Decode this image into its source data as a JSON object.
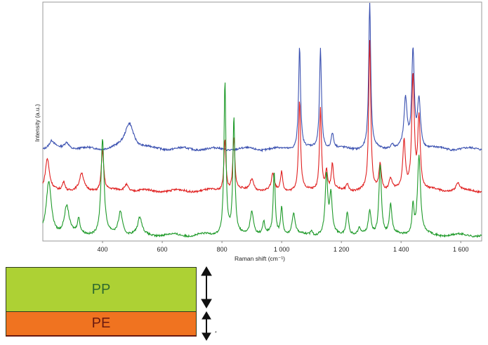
{
  "chart_data": {
    "type": "line",
    "xlabel": "Raman shift (cm⁻¹)",
    "ylabel": "Intensity (a.u.)",
    "xlim": [
      200,
      1670
    ],
    "ylim": [
      0,
      100
    ],
    "xticks": [
      400,
      600,
      800,
      1000,
      1200,
      1400,
      1600
    ],
    "xtick_labels": [
      "400",
      "600",
      "800",
      "1 000",
      "1 200",
      "1 400",
      "1 600"
    ],
    "grid": false,
    "series": [
      {
        "color": "#3a50b0",
        "baseline": 38.5,
        "peaks": [
          [
            230,
            3,
            10
          ],
          [
            280,
            3,
            10
          ],
          [
            490,
            11,
            18
          ],
          [
            1060,
            43,
            4
          ],
          [
            1130,
            42,
            4
          ],
          [
            1170,
            6.5,
            5
          ],
          [
            1295,
            61,
            4
          ],
          [
            1370,
            2,
            6
          ],
          [
            1415,
            20,
            6
          ],
          [
            1440,
            40,
            5
          ],
          [
            1460,
            20,
            6
          ]
        ]
      },
      {
        "color": "#e02020",
        "baseline": 21,
        "peaks": [
          [
            215,
            13,
            8
          ],
          [
            270,
            4,
            6
          ],
          [
            330,
            7,
            8
          ],
          [
            400,
            17,
            5
          ],
          [
            480,
            3,
            8
          ],
          [
            810,
            22,
            4
          ],
          [
            840,
            22,
            4
          ],
          [
            900,
            5,
            8
          ],
          [
            970,
            7,
            5
          ],
          [
            1000,
            8,
            4
          ],
          [
            1060,
            37,
            4
          ],
          [
            1130,
            35,
            4
          ],
          [
            1150,
            8,
            4
          ],
          [
            1170,
            11,
            4
          ],
          [
            1220,
            3,
            5
          ],
          [
            1295,
            62,
            4
          ],
          [
            1330,
            11,
            5
          ],
          [
            1365,
            5,
            6
          ],
          [
            1410,
            20,
            5
          ],
          [
            1440,
            48,
            5
          ],
          [
            1460,
            30,
            5
          ],
          [
            1590,
            3,
            8
          ]
        ]
      },
      {
        "color": "#1f9a2a",
        "baseline": 2.4,
        "peaks": [
          [
            220,
            22,
            10
          ],
          [
            280,
            12,
            10
          ],
          [
            320,
            6,
            5
          ],
          [
            400,
            40,
            6
          ],
          [
            460,
            10,
            8
          ],
          [
            525,
            7,
            8
          ],
          [
            810,
            64,
            4
          ],
          [
            840,
            48,
            4
          ],
          [
            900,
            10,
            7
          ],
          [
            940,
            5,
            4
          ],
          [
            975,
            26,
            4
          ],
          [
            1000,
            12,
            4
          ],
          [
            1040,
            9,
            6
          ],
          [
            1100,
            2,
            4
          ],
          [
            1150,
            25,
            5
          ],
          [
            1165,
            16,
            5
          ],
          [
            1220,
            10,
            5
          ],
          [
            1260,
            3,
            4
          ],
          [
            1295,
            10,
            5
          ],
          [
            1330,
            30,
            5
          ],
          [
            1365,
            12,
            5
          ],
          [
            1440,
            12,
            4
          ],
          [
            1460,
            33,
            6
          ]
        ]
      }
    ]
  },
  "diagram": {
    "layers": [
      {
        "label": "PP",
        "color": "#add134"
      },
      {
        "label": "PE",
        "color": "#f07320"
      }
    ]
  }
}
